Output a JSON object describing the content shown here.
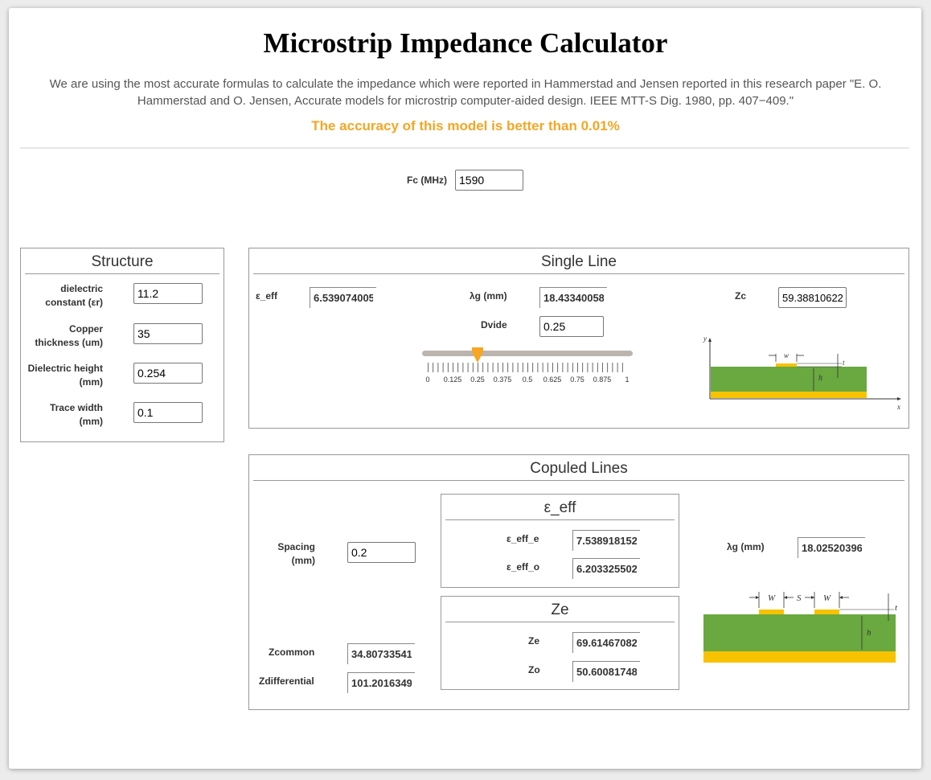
{
  "header": {
    "title": "Microstrip Impedance Calculator",
    "description": "We are using the most accurate formulas to calculate the impedance which were reported in Hammerstad and Jensen reported in this research paper \"E. O. Hammerstad and O. Jensen, Accurate models for microstrip computer-aided design. IEEE MTT-S Dig. 1980, pp. 407−409.\"",
    "accuracy": "The accuracy of this model is better than 0.01%"
  },
  "frequency": {
    "label": "Fc (MHz)",
    "value": "1590"
  },
  "structure": {
    "title": "Structure",
    "dielectric_constant": {
      "label_line1": "dielectric",
      "label_line2": "constant (εr)",
      "value": "11.2"
    },
    "copper_thickness": {
      "label_line1": "Copper",
      "label_line2": "thickness (um)",
      "value": "35"
    },
    "dielectric_height": {
      "label_line1": "Dielectric height",
      "label_line2": "(mm)",
      "value": "0.254"
    },
    "trace_width": {
      "label_line1": "Trace width",
      "label_line2": "(mm)",
      "value": "0.1"
    }
  },
  "single_line": {
    "title": "Single Line",
    "eps_eff": {
      "label": "ε_eff",
      "value": "6.53907400584"
    },
    "lambda_g": {
      "label": "λg (mm)",
      "value": "18.4334005812"
    },
    "zc": {
      "label": "Zc",
      "value": "59.3881062234"
    },
    "divide": {
      "label": "Dvide",
      "value": "0.25"
    },
    "slider": {
      "value_fraction": 0.25,
      "tick_labels": [
        "0",
        "0.125",
        "0.25",
        "0.375",
        "0.5",
        "0.625",
        "0.75",
        "0.875",
        "1"
      ],
      "track_color": "#bcb4ae",
      "thumb_color": "#f5a623"
    },
    "diagram": {
      "axis_y": "y",
      "axis_x": "x",
      "w": "w",
      "t": "t",
      "h": "h"
    }
  },
  "coupled_lines": {
    "title": "Copuled Lines",
    "spacing": {
      "label_line1": "Spacing",
      "label_line2": "(mm)",
      "value": "0.2"
    },
    "zcommon": {
      "label": "Zcommon",
      "value": "34.8073354123"
    },
    "zdifferential": {
      "label": "Zdifferential",
      "value": "101.201634912"
    },
    "eps_eff_box": {
      "title": "ε_eff",
      "even": {
        "label": "ε_eff_e",
        "value": "7.53891815234"
      },
      "odd": {
        "label": "ε_eff_o",
        "value": "6.20332550234"
      }
    },
    "ze_box": {
      "title": "Ze",
      "ze": {
        "label": "Ze",
        "value": "69.6146708234"
      },
      "zo": {
        "label": "Zo",
        "value": "50.6008174834"
      }
    },
    "lambda_g": {
      "label": "λg (mm)",
      "value": "18.0252039634"
    },
    "diagram": {
      "w1": "W",
      "s": "S",
      "w2": "W",
      "t": "t",
      "h": "h"
    }
  },
  "colors": {
    "substrate": "#6aa840",
    "copper": "#f7c200",
    "accent": "#f5a623"
  }
}
